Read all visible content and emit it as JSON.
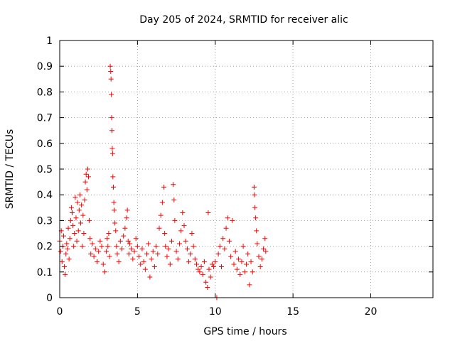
{
  "chart_data": {
    "type": "scatter",
    "title": "Day 205 of 2024, SRMTID for receiver alic",
    "xlabel": "GPS time / hours",
    "ylabel": "SRMTID / TECUs",
    "xlim": [
      0,
      24
    ],
    "ylim": [
      0,
      1
    ],
    "x_ticks": [
      0,
      5,
      10,
      15,
      20
    ],
    "x_tick_labels": [
      "0",
      "5",
      "10",
      "15",
      "20"
    ],
    "y_ticks": [
      0,
      0.1,
      0.2,
      0.3,
      0.4,
      0.5,
      0.6,
      0.7,
      0.8,
      0.9,
      1
    ],
    "y_tick_labels": [
      "0",
      "0.1",
      "0.2",
      "0.3",
      "0.4",
      "0.5",
      "0.6",
      "0.7",
      "0.8",
      "0.9",
      "1"
    ],
    "grid": true,
    "marker": "+",
    "color": "#ff0000",
    "series": [
      {
        "name": "SRMTID",
        "points": [
          [
            0.0,
            0.22
          ],
          [
            0.05,
            0.18
          ],
          [
            0.1,
            0.26
          ],
          [
            0.15,
            0.14
          ],
          [
            0.2,
            0.2
          ],
          [
            0.25,
            0.24
          ],
          [
            0.3,
            0.12
          ],
          [
            0.35,
            0.09
          ],
          [
            0.4,
            0.17
          ],
          [
            0.45,
            0.21
          ],
          [
            0.5,
            0.19
          ],
          [
            0.55,
            0.27
          ],
          [
            0.6,
            0.15
          ],
          [
            0.65,
            0.23
          ],
          [
            0.7,
            0.3
          ],
          [
            0.75,
            0.35
          ],
          [
            0.8,
            0.33
          ],
          [
            0.85,
            0.28
          ],
          [
            0.9,
            0.2
          ],
          [
            0.95,
            0.25
          ],
          [
            1.0,
            0.39
          ],
          [
            1.05,
            0.31
          ],
          [
            1.1,
            0.22
          ],
          [
            1.15,
            0.37
          ],
          [
            1.2,
            0.26
          ],
          [
            1.25,
            0.34
          ],
          [
            1.3,
            0.4
          ],
          [
            1.35,
            0.29
          ],
          [
            1.4,
            0.36
          ],
          [
            1.45,
            0.2
          ],
          [
            1.5,
            0.32
          ],
          [
            1.55,
            0.25
          ],
          [
            1.6,
            0.38
          ],
          [
            1.65,
            0.45
          ],
          [
            1.7,
            0.48
          ],
          [
            1.75,
            0.42
          ],
          [
            1.8,
            0.5
          ],
          [
            1.85,
            0.47
          ],
          [
            1.9,
            0.3
          ],
          [
            1.95,
            0.23
          ],
          [
            2.0,
            0.17
          ],
          [
            2.1,
            0.21
          ],
          [
            2.2,
            0.16
          ],
          [
            2.3,
            0.19
          ],
          [
            2.4,
            0.14
          ],
          [
            2.5,
            0.18
          ],
          [
            2.6,
            0.22
          ],
          [
            2.7,
            0.2
          ],
          [
            2.8,
            0.13
          ],
          [
            2.9,
            0.1
          ],
          [
            3.0,
            0.18
          ],
          [
            3.05,
            0.23
          ],
          [
            3.1,
            0.2
          ],
          [
            3.15,
            0.25
          ],
          [
            3.2,
            0.16
          ],
          [
            3.25,
            0.9
          ],
          [
            3.28,
            0.88
          ],
          [
            3.3,
            0.85
          ],
          [
            3.32,
            0.79
          ],
          [
            3.34,
            0.7
          ],
          [
            3.36,
            0.65
          ],
          [
            3.38,
            0.58
          ],
          [
            3.4,
            0.56
          ],
          [
            3.42,
            0.47
          ],
          [
            3.45,
            0.43
          ],
          [
            3.48,
            0.37
          ],
          [
            3.5,
            0.34
          ],
          [
            3.55,
            0.29
          ],
          [
            3.6,
            0.26
          ],
          [
            3.65,
            0.2
          ],
          [
            3.7,
            0.17
          ],
          [
            3.8,
            0.14
          ],
          [
            3.9,
            0.22
          ],
          [
            4.0,
            0.19
          ],
          [
            4.1,
            0.24
          ],
          [
            4.2,
            0.27
          ],
          [
            4.3,
            0.31
          ],
          [
            4.35,
            0.34
          ],
          [
            4.4,
            0.22
          ],
          [
            4.45,
            0.17
          ],
          [
            4.5,
            0.21
          ],
          [
            4.6,
            0.19
          ],
          [
            4.7,
            0.15
          ],
          [
            4.8,
            0.18
          ],
          [
            4.9,
            0.23
          ],
          [
            5.0,
            0.2
          ],
          [
            5.1,
            0.16
          ],
          [
            5.2,
            0.13
          ],
          [
            5.3,
            0.19
          ],
          [
            5.4,
            0.14
          ],
          [
            5.5,
            0.11
          ],
          [
            5.6,
            0.17
          ],
          [
            5.7,
            0.21
          ],
          [
            5.8,
            0.08
          ],
          [
            5.9,
            0.15
          ],
          [
            6.0,
            0.18
          ],
          [
            6.1,
            0.12
          ],
          [
            6.2,
            0.2
          ],
          [
            6.3,
            0.17
          ],
          [
            6.4,
            0.27
          ],
          [
            6.5,
            0.32
          ],
          [
            6.6,
            0.37
          ],
          [
            6.7,
            0.43
          ],
          [
            6.75,
            0.25
          ],
          [
            6.8,
            0.2
          ],
          [
            6.9,
            0.16
          ],
          [
            7.0,
            0.19
          ],
          [
            7.1,
            0.13
          ],
          [
            7.2,
            0.22
          ],
          [
            7.3,
            0.44
          ],
          [
            7.35,
            0.38
          ],
          [
            7.4,
            0.3
          ],
          [
            7.5,
            0.18
          ],
          [
            7.6,
            0.15
          ],
          [
            7.7,
            0.21
          ],
          [
            7.8,
            0.26
          ],
          [
            7.9,
            0.33
          ],
          [
            8.0,
            0.28
          ],
          [
            8.1,
            0.22
          ],
          [
            8.2,
            0.19
          ],
          [
            8.3,
            0.14
          ],
          [
            8.4,
            0.17
          ],
          [
            8.5,
            0.25
          ],
          [
            8.6,
            0.2
          ],
          [
            8.7,
            0.15
          ],
          [
            8.8,
            0.13
          ],
          [
            8.9,
            0.11
          ],
          [
            9.0,
            0.1
          ],
          [
            9.1,
            0.12
          ],
          [
            9.2,
            0.09
          ],
          [
            9.3,
            0.14
          ],
          [
            9.4,
            0.06
          ],
          [
            9.5,
            0.04
          ],
          [
            9.55,
            0.33
          ],
          [
            9.6,
            0.11
          ],
          [
            9.7,
            0.08
          ],
          [
            9.8,
            0.13
          ],
          [
            9.9,
            0.12
          ],
          [
            10.0,
            0.14
          ],
          [
            10.1,
            0.0
          ],
          [
            10.2,
            0.17
          ],
          [
            10.3,
            0.2
          ],
          [
            10.4,
            0.12
          ],
          [
            10.5,
            0.23
          ],
          [
            10.6,
            0.19
          ],
          [
            10.7,
            0.27
          ],
          [
            10.8,
            0.31
          ],
          [
            10.9,
            0.22
          ],
          [
            11.0,
            0.16
          ],
          [
            11.1,
            0.3
          ],
          [
            11.2,
            0.13
          ],
          [
            11.3,
            0.18
          ],
          [
            11.4,
            0.11
          ],
          [
            11.5,
            0.15
          ],
          [
            11.6,
            0.09
          ],
          [
            11.7,
            0.14
          ],
          [
            11.8,
            0.2
          ],
          [
            11.9,
            0.1
          ],
          [
            12.0,
            0.13
          ],
          [
            12.1,
            0.17
          ],
          [
            12.2,
            0.05
          ],
          [
            12.3,
            0.14
          ],
          [
            12.4,
            0.1
          ],
          [
            12.5,
            0.43
          ],
          [
            12.52,
            0.4
          ],
          [
            12.55,
            0.35
          ],
          [
            12.6,
            0.31
          ],
          [
            12.65,
            0.26
          ],
          [
            12.7,
            0.21
          ],
          [
            12.8,
            0.16
          ],
          [
            12.9,
            0.12
          ],
          [
            13.0,
            0.15
          ],
          [
            13.1,
            0.19
          ],
          [
            13.2,
            0.23
          ],
          [
            13.25,
            0.18
          ]
        ]
      }
    ]
  }
}
